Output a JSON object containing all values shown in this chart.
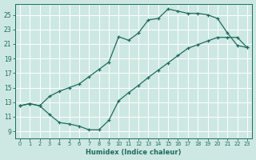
{
  "xlabel": "Humidex (Indice chaleur)",
  "bg_color": "#cde8e2",
  "grid_color": "#b0d4ce",
  "line_color": "#1e6b5e",
  "xlim": [
    -0.5,
    23.5
  ],
  "ylim": [
    8.0,
    26.5
  ],
  "xticks": [
    0,
    1,
    2,
    3,
    4,
    5,
    6,
    7,
    8,
    9,
    10,
    11,
    12,
    13,
    14,
    15,
    16,
    17,
    18,
    19,
    20,
    21,
    22,
    23
  ],
  "yticks": [
    9,
    11,
    13,
    15,
    17,
    19,
    21,
    23,
    25
  ],
  "curve_upper_x": [
    0,
    1,
    2,
    3,
    4,
    5,
    6,
    7,
    8,
    9,
    10,
    11,
    12,
    13,
    14,
    15,
    16,
    17,
    18,
    19,
    20,
    21,
    22,
    23
  ],
  "curve_upper_y": [
    12.5,
    12.8,
    12.5,
    13.8,
    14.5,
    15.0,
    15.5,
    16.5,
    17.5,
    18.5,
    22.0,
    21.5,
    22.5,
    24.3,
    24.5,
    25.8,
    25.5,
    25.2,
    25.2,
    25.0,
    24.5,
    22.5,
    20.8,
    20.5
  ],
  "curve_lower_x": [
    0,
    1,
    2,
    3,
    4,
    5,
    6,
    7,
    8,
    9,
    10,
    11,
    12,
    13,
    14,
    15,
    16,
    17,
    18,
    19,
    20,
    21,
    22,
    23
  ],
  "curve_lower_y": [
    12.5,
    12.8,
    12.5,
    11.3,
    10.2,
    10.0,
    9.7,
    9.2,
    9.2,
    10.5,
    13.2,
    14.3,
    15.3,
    16.4,
    17.4,
    18.4,
    19.4,
    20.4,
    20.9,
    21.4,
    21.9,
    21.9,
    21.9,
    20.5
  ]
}
